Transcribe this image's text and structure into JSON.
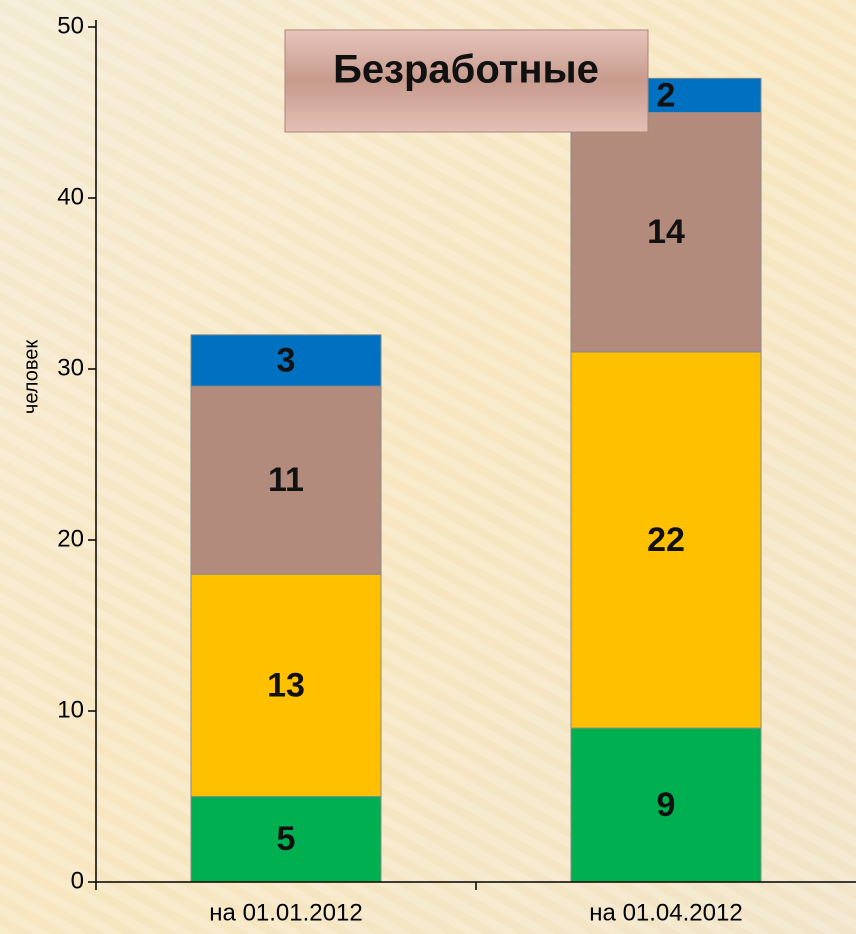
{
  "chart_data": {
    "type": "stacked_bar",
    "title": "Безработные",
    "y_label": "человек",
    "categories": [
      "на 01.01.2012",
      "на 01.04.2012"
    ],
    "series": [
      {
        "color": "#00b050",
        "values": [
          5,
          9
        ]
      },
      {
        "color": "#ffc000",
        "values": [
          13,
          22
        ]
      },
      {
        "color": "#b38b7d",
        "values": [
          11,
          14
        ]
      },
      {
        "color": "#0070c0",
        "values": [
          3,
          2
        ]
      }
    ],
    "ylim": [
      0,
      50
    ],
    "yticks": [
      0,
      10,
      20,
      30,
      40,
      50
    ],
    "grid": false
  }
}
